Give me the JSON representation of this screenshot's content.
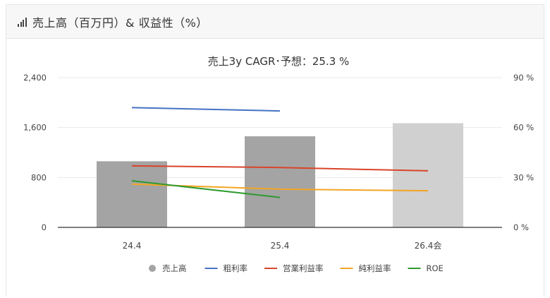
{
  "header": {
    "title": "売上高（百万円）& 収益性（%）",
    "icon": "signal-bars-icon"
  },
  "chart_data": {
    "type": "bar",
    "title": "売上3y CAGR･予想：25.3 %",
    "categories": [
      "24.4",
      "25.4",
      "26.4会"
    ],
    "y_left": {
      "range": [
        0,
        2400
      ],
      "ticks": [
        "0",
        "800",
        "1,600",
        "2,400"
      ],
      "tick_values": [
        0,
        800,
        1600,
        2400
      ]
    },
    "y_right": {
      "range": [
        0,
        90
      ],
      "ticks": [
        "0 %",
        "30 %",
        "60 %",
        "90 %"
      ],
      "tick_values": [
        0,
        30,
        60,
        90
      ]
    },
    "grid": true,
    "legend_position": "bottom",
    "bars": {
      "name": "売上高",
      "values": [
        1060,
        1460,
        1670
      ],
      "colors": [
        "#a4a4a4",
        "#a4a4a4",
        "#d0d0d0"
      ]
    },
    "series": [
      {
        "name": "粗利率",
        "axis": "right",
        "color": "#4472c4",
        "values": [
          72,
          70,
          null
        ]
      },
      {
        "name": "営業利益率",
        "axis": "right",
        "color": "#d9442b",
        "values": [
          37,
          36,
          34
        ]
      },
      {
        "name": "純利益率",
        "axis": "right",
        "color": "#f4a523",
        "values": [
          26,
          23,
          22
        ]
      },
      {
        "name": "ROE",
        "axis": "right",
        "color": "#2e9a2e",
        "values": [
          28,
          18,
          null
        ]
      }
    ]
  }
}
